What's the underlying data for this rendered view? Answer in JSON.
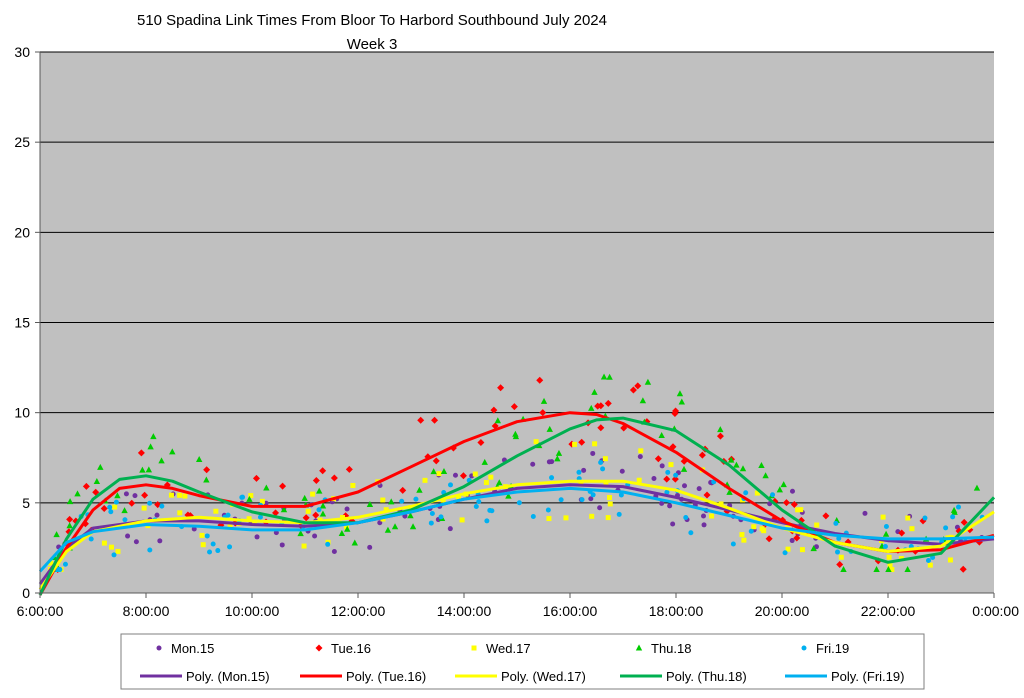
{
  "chart_data": {
    "type": "scatter",
    "title": "510 Spadina Link Times From Bloor To Harbord Southbound July 2024",
    "subtitle": "Week 3",
    "xlabel": "",
    "ylabel": "",
    "xlim": [
      "6:00:00",
      "0:00:00"
    ],
    "ylim": [
      0,
      30
    ],
    "x_tick_labels": [
      "6:00:00",
      "8:00:00",
      "10:00:00",
      "12:00:00",
      "14:00:00",
      "16:00:00",
      "18:00:00",
      "20:00:00",
      "22:00:00",
      "0:00:00"
    ],
    "y_tick_labels": [
      "0",
      "5",
      "10",
      "15",
      "20",
      "25",
      "30"
    ],
    "grid": "horizontal",
    "plot_background": "#c0c0c0",
    "legend_position": "bottom",
    "series": [
      {
        "name": "Mon.15",
        "marker": "circle",
        "color": "#7030a0"
      },
      {
        "name": "Tue.16",
        "marker": "diamond",
        "color": "#ff0000"
      },
      {
        "name": "Wed.17",
        "marker": "square",
        "color": "#ffff00"
      },
      {
        "name": "Thu.18",
        "marker": "triangle",
        "color": "#00cc00"
      },
      {
        "name": "Fri.19",
        "marker": "circle",
        "color": "#00b0f0"
      }
    ],
    "trendlines": [
      {
        "name": "Poly. (Mon.15)",
        "color": "#7030a0",
        "points": [
          [
            6.0,
            0.5
          ],
          [
            6.5,
            2.5
          ],
          [
            7.0,
            3.6
          ],
          [
            8.0,
            4.0
          ],
          [
            9.0,
            4.0
          ],
          [
            10.0,
            3.8
          ],
          [
            11.0,
            3.7
          ],
          [
            12.0,
            3.9
          ],
          [
            13.0,
            4.5
          ],
          [
            14.0,
            5.2
          ],
          [
            15.0,
            5.8
          ],
          [
            16.0,
            6.0
          ],
          [
            17.0,
            5.9
          ],
          [
            18.0,
            5.3
          ],
          [
            19.0,
            4.6
          ],
          [
            20.0,
            3.9
          ],
          [
            21.0,
            3.3
          ],
          [
            22.0,
            2.9
          ],
          [
            23.0,
            2.7
          ],
          [
            24.0,
            3.0
          ]
        ]
      },
      {
        "name": "Poly. (Tue.16)",
        "color": "#ff0000",
        "points": [
          [
            6.0,
            -0.5
          ],
          [
            6.5,
            2.5
          ],
          [
            7.0,
            4.6
          ],
          [
            7.5,
            5.8
          ],
          [
            8.0,
            6.0
          ],
          [
            8.5,
            5.8
          ],
          [
            9.0,
            5.4
          ],
          [
            10.0,
            4.8
          ],
          [
            11.0,
            4.8
          ],
          [
            12.0,
            5.6
          ],
          [
            13.0,
            7.0
          ],
          [
            14.0,
            8.4
          ],
          [
            15.0,
            9.5
          ],
          [
            16.0,
            10.0
          ],
          [
            16.5,
            9.9
          ],
          [
            17.0,
            9.4
          ],
          [
            18.0,
            7.8
          ],
          [
            19.0,
            5.8
          ],
          [
            20.0,
            4.0
          ],
          [
            21.0,
            2.8
          ],
          [
            22.0,
            2.3
          ],
          [
            23.0,
            2.4
          ],
          [
            24.0,
            3.2
          ]
        ]
      },
      {
        "name": "Poly. (Wed.17)",
        "color": "#ffff00",
        "points": [
          [
            6.0,
            0.2
          ],
          [
            6.5,
            2.3
          ],
          [
            7.0,
            3.4
          ],
          [
            8.0,
            4.0
          ],
          [
            9.0,
            4.2
          ],
          [
            10.0,
            4.0
          ],
          [
            11.0,
            3.9
          ],
          [
            12.0,
            4.2
          ],
          [
            13.0,
            4.8
          ],
          [
            14.0,
            5.5
          ],
          [
            15.0,
            6.0
          ],
          [
            16.0,
            6.2
          ],
          [
            17.0,
            6.2
          ],
          [
            18.0,
            5.7
          ],
          [
            19.0,
            4.7
          ],
          [
            20.0,
            3.6
          ],
          [
            21.0,
            2.8
          ],
          [
            22.0,
            2.3
          ],
          [
            23.0,
            2.6
          ],
          [
            24.0,
            4.5
          ]
        ]
      },
      {
        "name": "Poly. (Thu.18)",
        "color": "#00b050",
        "points": [
          [
            6.0,
            -1.0
          ],
          [
            6.5,
            3.0
          ],
          [
            7.0,
            5.2
          ],
          [
            7.5,
            6.3
          ],
          [
            8.0,
            6.5
          ],
          [
            8.5,
            6.2
          ],
          [
            9.0,
            5.6
          ],
          [
            10.0,
            4.5
          ],
          [
            11.0,
            3.9
          ],
          [
            12.0,
            3.9
          ],
          [
            13.0,
            4.6
          ],
          [
            14.0,
            5.9
          ],
          [
            15.0,
            7.6
          ],
          [
            16.0,
            9.1
          ],
          [
            16.5,
            9.6
          ],
          [
            17.0,
            9.7
          ],
          [
            18.0,
            9.0
          ],
          [
            19.0,
            7.1
          ],
          [
            20.0,
            4.6
          ],
          [
            21.0,
            2.6
          ],
          [
            22.0,
            1.7
          ],
          [
            23.0,
            2.2
          ],
          [
            24.0,
            5.3
          ]
        ]
      },
      {
        "name": "Poly. (Fri.19)",
        "color": "#00b0f0",
        "points": [
          [
            6.0,
            1.2
          ],
          [
            6.5,
            2.8
          ],
          [
            7.0,
            3.4
          ],
          [
            8.0,
            3.8
          ],
          [
            9.0,
            3.7
          ],
          [
            10.0,
            3.5
          ],
          [
            11.0,
            3.5
          ],
          [
            12.0,
            3.9
          ],
          [
            13.0,
            4.5
          ],
          [
            14.0,
            5.2
          ],
          [
            15.0,
            5.6
          ],
          [
            16.0,
            5.8
          ],
          [
            17.0,
            5.6
          ],
          [
            18.0,
            5.0
          ],
          [
            19.0,
            4.3
          ],
          [
            20.0,
            3.6
          ],
          [
            21.0,
            3.2
          ],
          [
            22.0,
            3.0
          ],
          [
            23.0,
            3.0
          ],
          [
            24.0,
            3.1
          ]
        ]
      }
    ]
  }
}
